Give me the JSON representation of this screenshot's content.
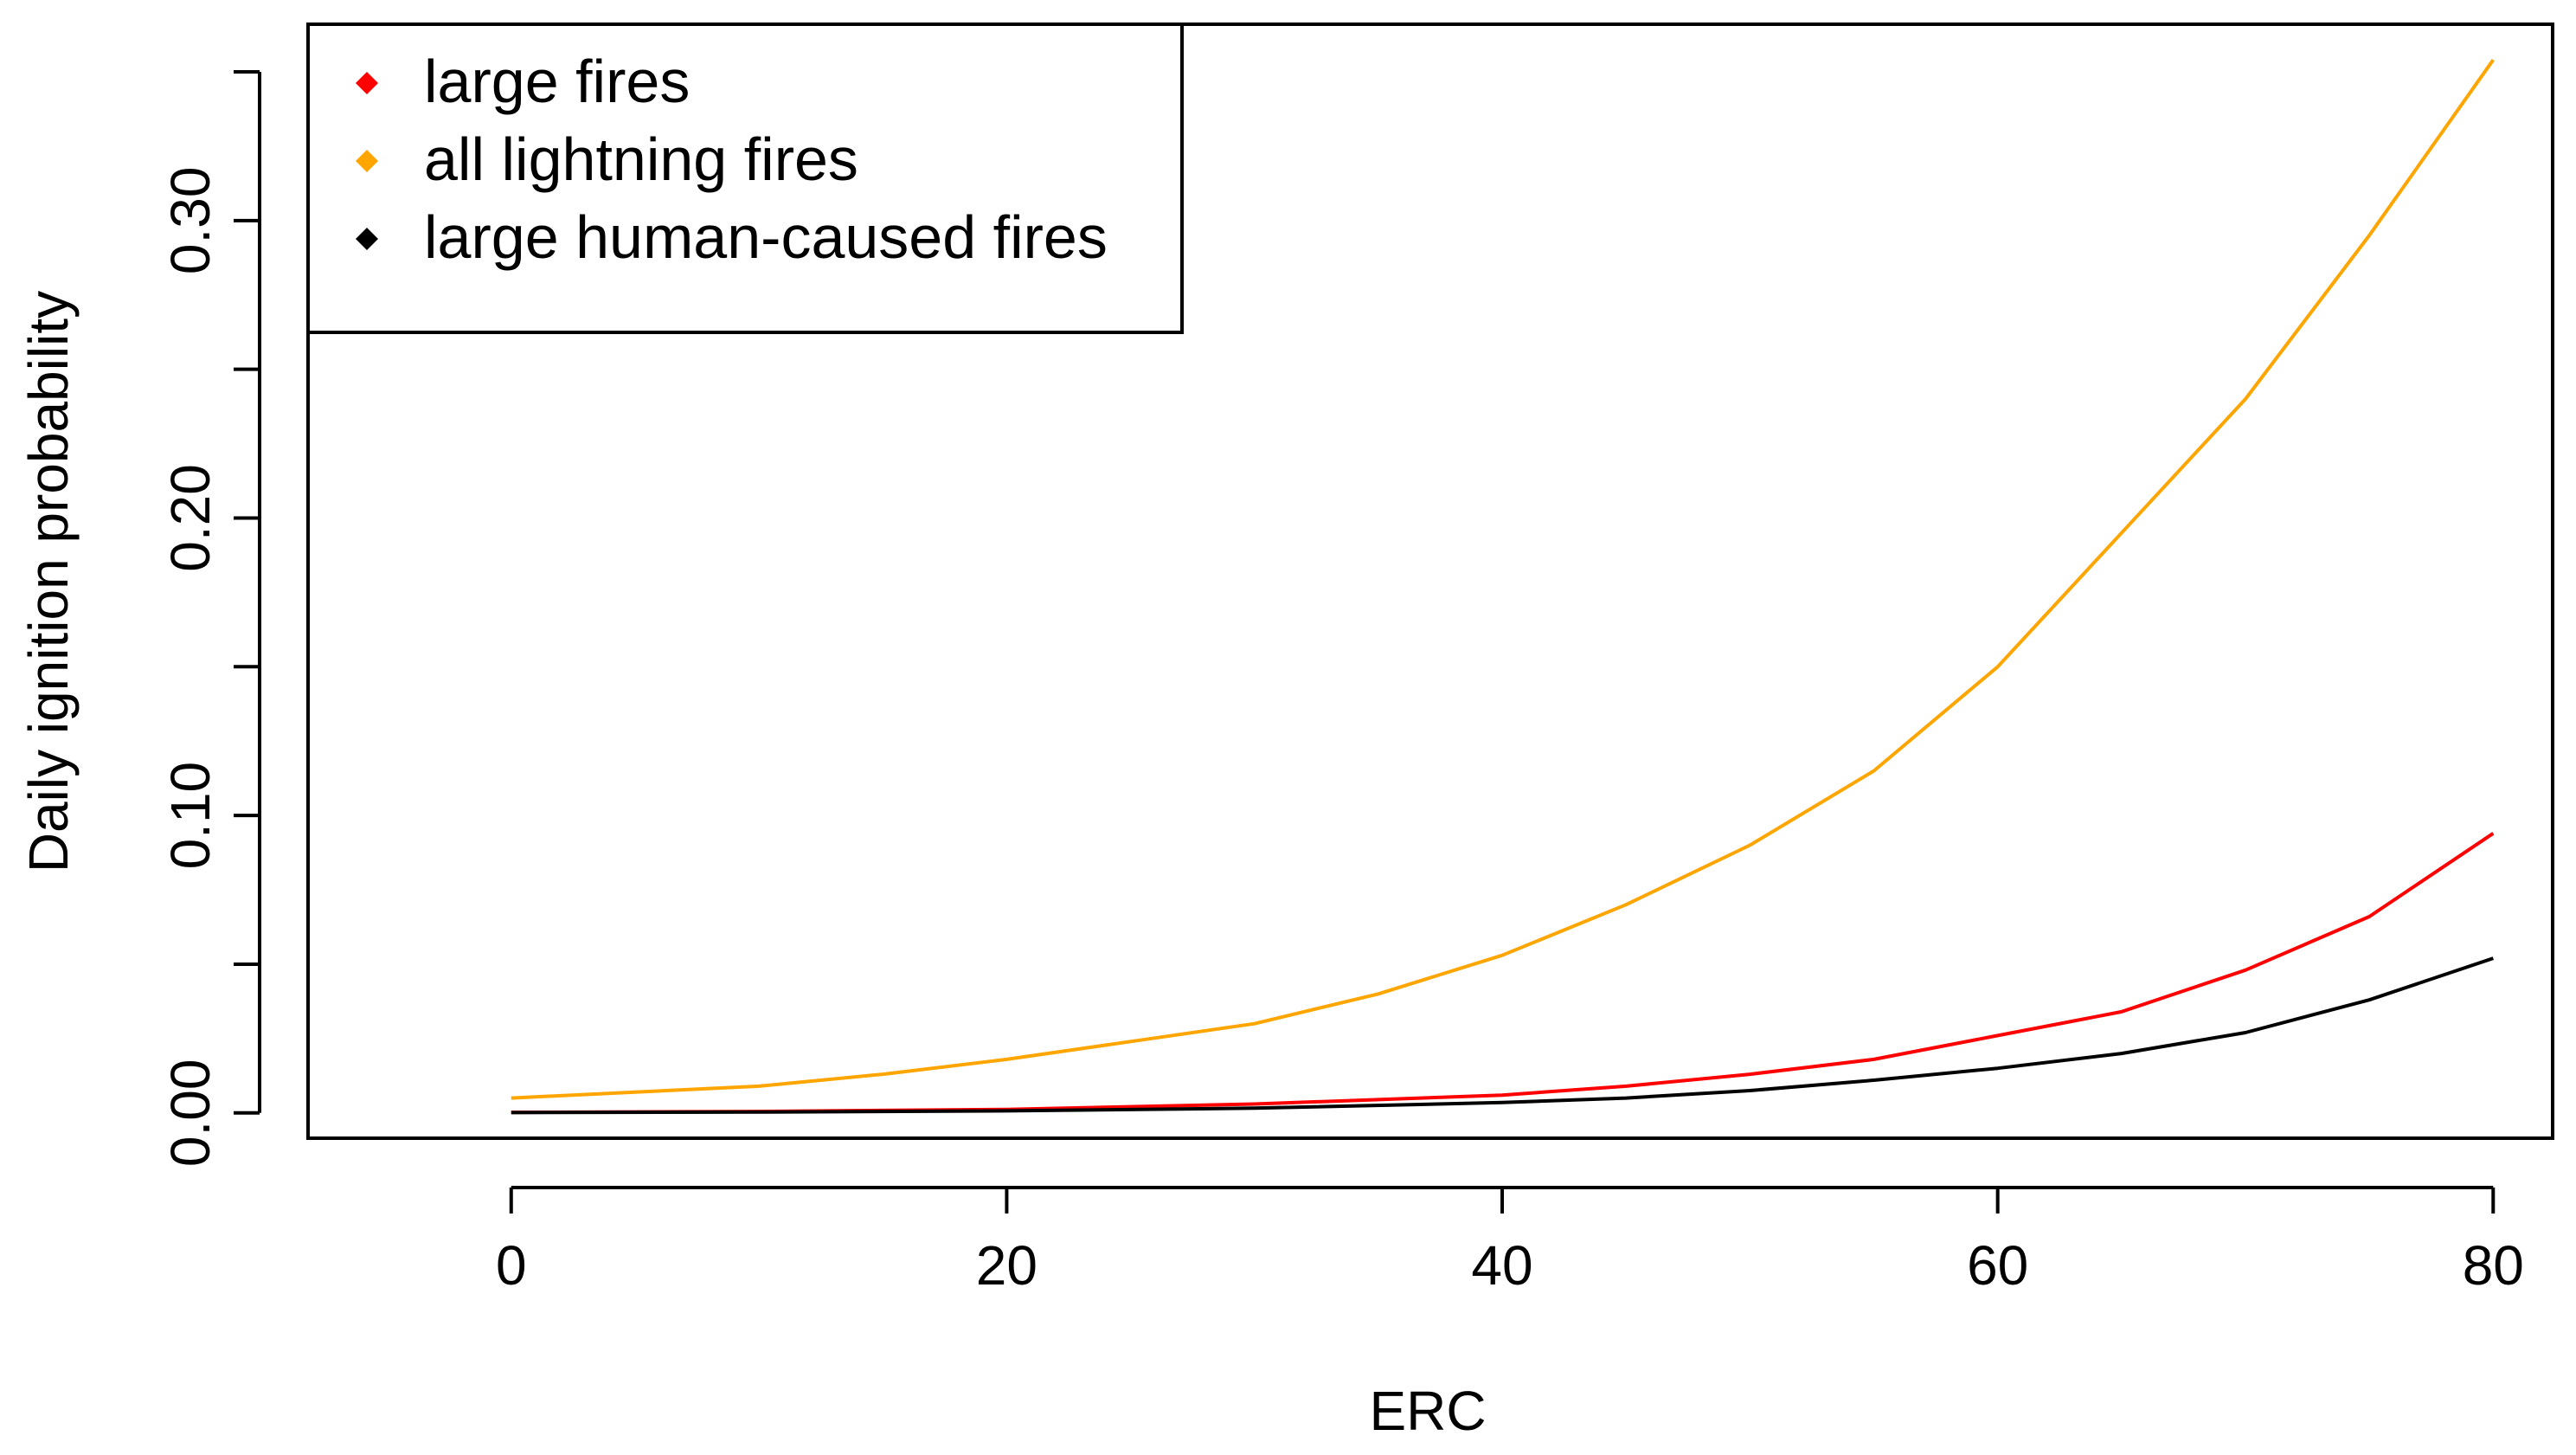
{
  "chart_data": {
    "type": "line",
    "xlabel": "ERC",
    "ylabel": "Daily ignition probability",
    "xlim": [
      -8.2,
      82.4
    ],
    "ylim": [
      -0.0085,
      0.366
    ],
    "x_ticks": [
      0,
      20,
      40,
      60,
      80
    ],
    "x_tick_labels": [
      "0",
      "20",
      "40",
      "60",
      "80"
    ],
    "y_ticks": [
      0,
      0.05,
      0.1,
      0.15,
      0.2,
      0.25,
      0.3,
      0.35
    ],
    "y_tick_labels": [
      "0.00",
      "",
      "0.10",
      "",
      "0.20",
      "",
      "0.30",
      ""
    ],
    "grid": false,
    "legend_position": "top-left",
    "legend": [
      {
        "label": "large fires",
        "color": "#ff0000"
      },
      {
        "label": "all lightning fires",
        "color": "#ffa500"
      },
      {
        "label": "large human-caused fires",
        "color": "#000000"
      }
    ],
    "series": [
      {
        "name": "all lightning fires",
        "color": "#ffa500",
        "x": [
          0,
          5,
          10,
          15,
          20,
          25,
          30,
          35,
          40,
          45,
          50,
          55,
          60,
          65,
          70,
          75,
          80
        ],
        "y": [
          0.005,
          0.007,
          0.009,
          0.013,
          0.018,
          0.024,
          0.03,
          0.04,
          0.053,
          0.07,
          0.09,
          0.115,
          0.15,
          0.195,
          0.24,
          0.295,
          0.354
        ]
      },
      {
        "name": "large fires",
        "color": "#ff0000",
        "x": [
          0,
          10,
          20,
          30,
          40,
          45,
          50,
          55,
          60,
          65,
          70,
          75,
          80
        ],
        "y": [
          0.0002,
          0.0005,
          0.0012,
          0.003,
          0.006,
          0.009,
          0.013,
          0.018,
          0.026,
          0.034,
          0.048,
          0.066,
          0.094
        ]
      },
      {
        "name": "large human-caused fires",
        "color": "#000000",
        "x": [
          0,
          10,
          20,
          30,
          40,
          45,
          50,
          55,
          60,
          65,
          70,
          75,
          80
        ],
        "y": [
          0.0001,
          0.0003,
          0.0007,
          0.0016,
          0.0035,
          0.005,
          0.0075,
          0.011,
          0.015,
          0.02,
          0.027,
          0.038,
          0.052
        ]
      }
    ]
  }
}
